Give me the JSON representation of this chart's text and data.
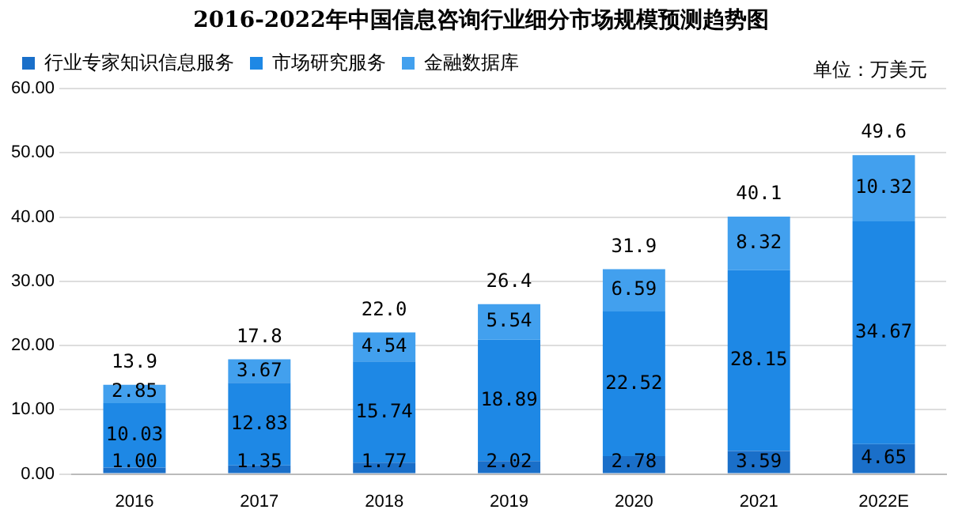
{
  "chart_data": {
    "type": "bar",
    "title": "2016-2022年中国信息咨询行业细分市场规模预测趋势图",
    "categories": [
      "2016",
      "2017",
      "2018",
      "2019",
      "2020",
      "2021",
      "2022E"
    ],
    "series": [
      {
        "name": "行业专家知识信息服务",
        "color": "#1a6fc9",
        "values": [
          1.0,
          1.35,
          1.77,
          2.02,
          2.78,
          3.59,
          4.65
        ],
        "value_labels": [
          "1.00",
          "1.35",
          "1.77",
          "2.02",
          "2.78",
          "3.59",
          "4.65"
        ]
      },
      {
        "name": "市场研究服务",
        "color": "#1e88e5",
        "values": [
          10.03,
          12.83,
          15.74,
          18.89,
          22.52,
          28.15,
          34.67
        ],
        "value_labels": [
          "10.03",
          "12.83",
          "15.74",
          "18.89",
          "22.52",
          "28.15",
          "34.67"
        ]
      },
      {
        "name": "金融数据库",
        "color": "#42a0ee",
        "values": [
          2.85,
          3.67,
          4.54,
          5.54,
          6.59,
          8.32,
          10.32
        ],
        "value_labels": [
          "2.85",
          "3.67",
          "4.54",
          "5.54",
          "6.59",
          "8.32",
          "10.32"
        ]
      }
    ],
    "stacked": true,
    "totals": [
      "13.9",
      "17.8",
      "22.0",
      "26.4",
      "31.9",
      "40.1",
      "49.6"
    ],
    "ylim": [
      0,
      60
    ],
    "yticks": [
      {
        "value": 0,
        "label": "0.00"
      },
      {
        "value": 10,
        "label": "10.00"
      },
      {
        "value": 20,
        "label": "20.00"
      },
      {
        "value": 30,
        "label": "30.00"
      },
      {
        "value": 40,
        "label": "40.00"
      },
      {
        "value": 50,
        "label": "50.00"
      },
      {
        "value": 60,
        "label": "60.00"
      }
    ],
    "grid": "y",
    "legend": "top",
    "annotations": [
      "单位：万美元"
    ]
  }
}
